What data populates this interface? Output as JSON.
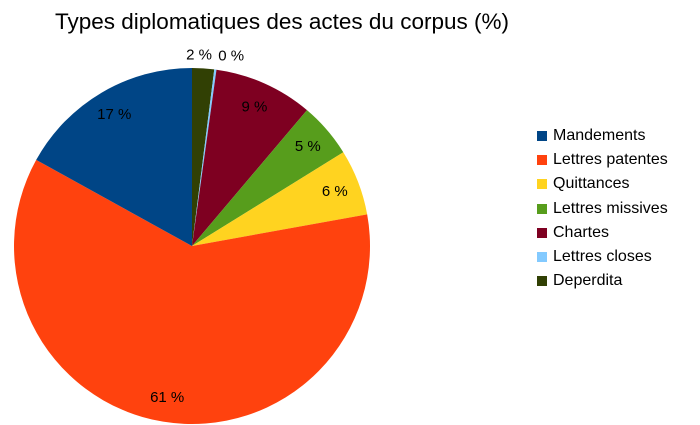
{
  "chart_data": {
    "type": "pie",
    "title": "Types diplomatiques des actes du corpus (%)",
    "slices": [
      {
        "name": "Deperdita",
        "value": 2,
        "label": "2 %",
        "color": "#314004"
      },
      {
        "name": "Lettres closes",
        "value": 0.2,
        "label": "0 %",
        "color": "#83caff"
      },
      {
        "name": "Chartes",
        "value": 9,
        "label": "9 %",
        "color": "#7e0021"
      },
      {
        "name": "Lettres missives",
        "value": 5,
        "label": "5 %",
        "color": "#579d1c"
      },
      {
        "name": "Quittances",
        "value": 6,
        "label": "6 %",
        "color": "#ffd320"
      },
      {
        "name": "Lettres patentes",
        "value": 61,
        "label": "61 %",
        "color": "#ff420e"
      },
      {
        "name": "Mandements",
        "value": 17,
        "label": "17 %",
        "color": "#004586"
      }
    ],
    "legend": {
      "position": "right",
      "items": [
        {
          "name": "Mandements",
          "color": "#004586"
        },
        {
          "name": "Lettres patentes",
          "color": "#ff420e"
        },
        {
          "name": "Quittances",
          "color": "#ffd320"
        },
        {
          "name": "Lettres missives",
          "color": "#579d1c"
        },
        {
          "name": "Chartes",
          "color": "#7e0021"
        },
        {
          "name": "Lettres closes",
          "color": "#83caff"
        },
        {
          "name": "Deperdita",
          "color": "#314004"
        }
      ]
    }
  }
}
